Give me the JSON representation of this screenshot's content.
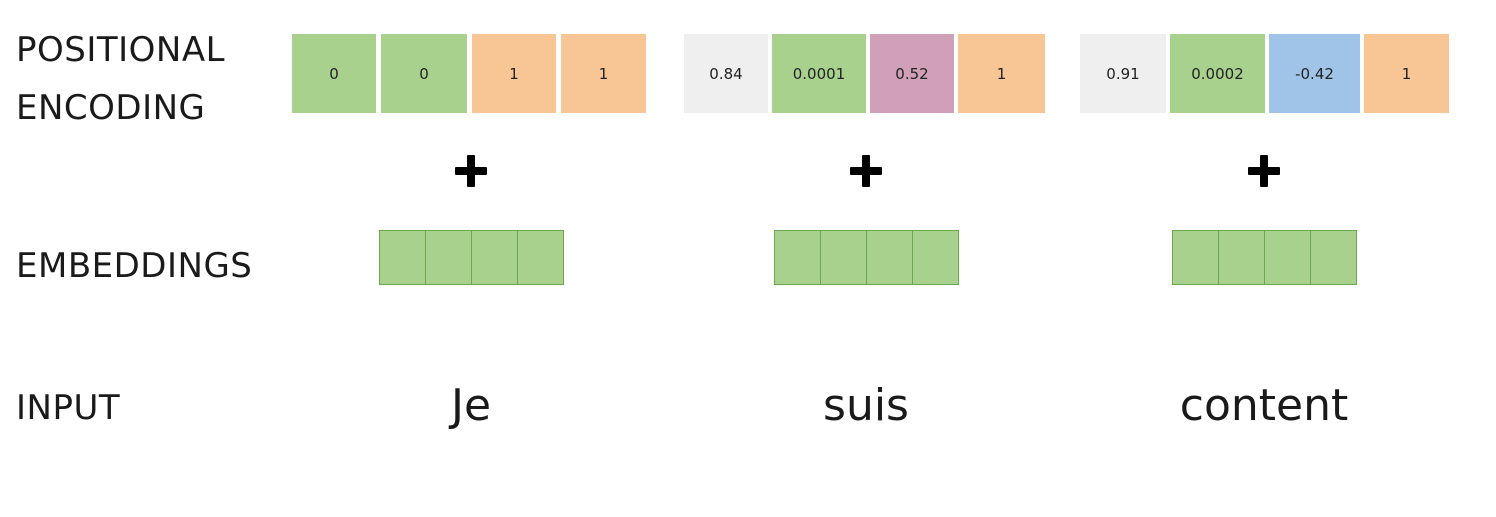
{
  "labels": {
    "positional_encoding_line1": "POSITIONAL",
    "positional_encoding_line2": "ENCODING",
    "embeddings": "EMBEDDINGS",
    "input": "INPUT"
  },
  "colors": {
    "green": "#a9d18e",
    "orange": "#f8c594",
    "grey": "#efefef",
    "pink": "#cfa0b8",
    "blue": "#9fc4e8",
    "embedding_border": "#6aa84f"
  },
  "tokens": [
    {
      "word": "Je",
      "plus": "+",
      "positional_encoding": [
        {
          "value": "0",
          "color": "green"
        },
        {
          "value": "0",
          "color": "green"
        },
        {
          "value": "1",
          "color": "orange"
        },
        {
          "value": "1",
          "color": "orange"
        }
      ],
      "embedding_cells": 4
    },
    {
      "word": "suis",
      "plus": "+",
      "positional_encoding": [
        {
          "value": "0.84",
          "color": "grey"
        },
        {
          "value": "0.0001",
          "color": "green"
        },
        {
          "value": "0.52",
          "color": "pink"
        },
        {
          "value": "1",
          "color": "orange"
        }
      ],
      "embedding_cells": 4
    },
    {
      "word": "content",
      "plus": "+",
      "positional_encoding": [
        {
          "value": "0.91",
          "color": "grey"
        },
        {
          "value": "0.0002",
          "color": "green"
        },
        {
          "value": "-0.42",
          "color": "blue"
        },
        {
          "value": "1",
          "color": "orange"
        }
      ],
      "embedding_cells": 4
    }
  ]
}
